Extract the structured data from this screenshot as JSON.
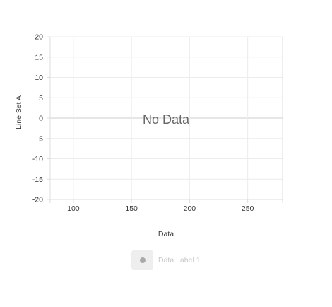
{
  "chart_data": {
    "type": "line",
    "xlabel": "Data",
    "ylabel": "Line Set A",
    "xlim": [
      80,
      280
    ],
    "ylim": [
      -20,
      20
    ],
    "xticks": [
      100,
      150,
      200,
      250
    ],
    "yticks": [
      20,
      15,
      10,
      5,
      0,
      -5,
      -10,
      -15,
      -20
    ],
    "grid": true,
    "empty_message": "No Data",
    "legend_position": "bottom",
    "series": [
      {
        "name": "Data Label 1",
        "values": [],
        "color": "#a9a9a9"
      }
    ]
  }
}
